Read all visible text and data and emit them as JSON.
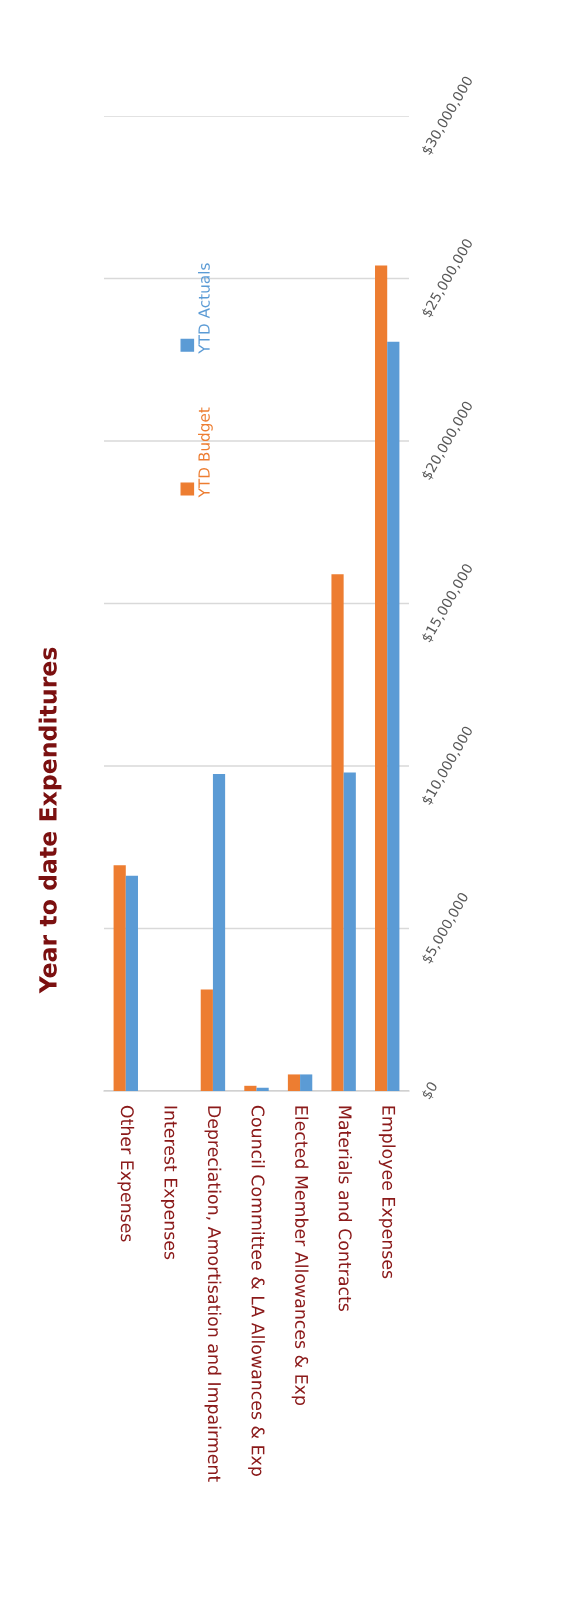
{
  "chart_data": {
    "type": "bar",
    "title": "Year to date Expenditures",
    "categories": [
      "Other Expenses",
      "Interest Expenses",
      "Depreciation, Amortisation and Impairment",
      "Council Committee & LA Allowances & Exp",
      "Elected Member Allowances & Exp",
      "Materials and Contracts",
      "Employee Expenses"
    ],
    "series": [
      {
        "name": "YTD Budget",
        "color": "#ed7d31",
        "values": [
          6950000,
          0,
          3120000,
          160000,
          510000,
          15900000,
          25400000
        ]
      },
      {
        "name": "YTD Actuals",
        "color": "#5b9bd5",
        "values": [
          6620000,
          0,
          9750000,
          100000,
          510000,
          9800000,
          23050000
        ]
      }
    ],
    "ylim": [
      0,
      30000000
    ],
    "yticks": [
      {
        "value": 0,
        "label": "$0"
      },
      {
        "value": 5000000,
        "label": "$5,000,000"
      },
      {
        "value": 10000000,
        "label": "$10,000,000"
      },
      {
        "value": 15000000,
        "label": "$15,000,000"
      },
      {
        "value": 20000000,
        "label": "$20,000,000"
      },
      {
        "value": 25000000,
        "label": "$25,000,000"
      },
      {
        "value": 30000000,
        "label": "$30,000,000"
      }
    ],
    "grid": "y",
    "legend": "top"
  }
}
